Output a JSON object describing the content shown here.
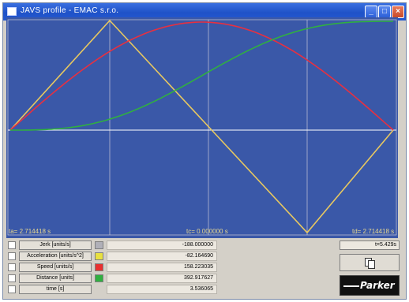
{
  "window": {
    "title": "JAVS profile - EMAC s.r.o."
  },
  "plot": {
    "label_ta": "ta= 2.714418 s",
    "label_tc": "tc= 0.000000 s",
    "label_td": "td= 2.714418 s"
  },
  "channels": [
    {
      "label": "Jerk [units/s]",
      "color": "#b0b0b8",
      "value": "-188.000000"
    },
    {
      "label": "Acceleration [units/s^2]",
      "color": "#e8e040",
      "value": "-82.164690"
    },
    {
      "label": "Speed [units/s]",
      "color": "#e83030",
      "value": "158.223035"
    },
    {
      "label": "Distance [units]",
      "color": "#30b040",
      "value": "392.917627"
    },
    {
      "label": "time [s]",
      "color": "",
      "value": "3.536065"
    }
  ],
  "total_time": "t=5.429s",
  "logo_text": "Parker",
  "icons": [
    "window-icon",
    "minimize-icon",
    "maximize-icon",
    "close-icon",
    "copy-icon"
  ]
}
